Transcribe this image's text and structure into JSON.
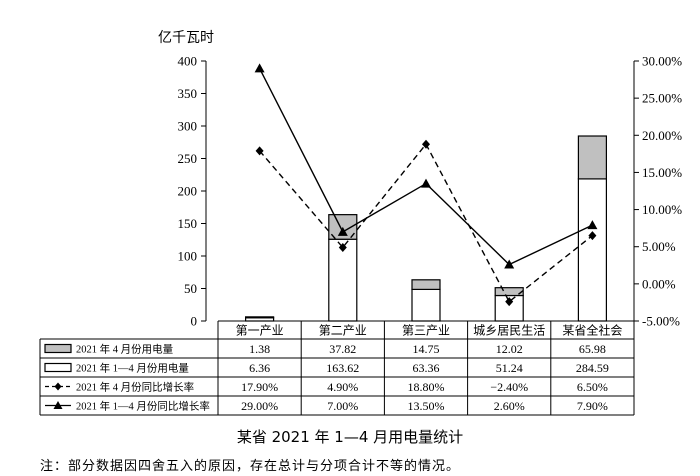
{
  "chart_data": {
    "type": "bar",
    "title": "某省 2021 年 1—4 月用电量统计",
    "unit_left": "亿千瓦时",
    "categories": [
      "第一产业",
      "第二产业",
      "第三产业",
      "城乡居民生活",
      "某省全社会"
    ],
    "left_axis": {
      "min": 0,
      "max": 400,
      "ticks": [
        "400",
        "350",
        "300",
        "250",
        "200",
        "150",
        "100",
        "50",
        "0"
      ]
    },
    "right_axis": {
      "min": -5,
      "max": 30,
      "ticks": [
        "30.00%",
        "25.00%",
        "20.00%",
        "15.00%",
        "10.00%",
        "5.00%",
        "0.00%",
        "-5.00%"
      ]
    },
    "series": [
      {
        "name": "2021 年 4 月份用电量",
        "kind": "bar",
        "color": "#c0c0c0",
        "values": [
          1.38,
          37.82,
          14.75,
          12.02,
          65.98
        ],
        "labels": [
          "1.38",
          "37.82",
          "14.75",
          "12.02",
          "65.98"
        ]
      },
      {
        "name": "2021 年 1—4 月份用电量",
        "kind": "bar",
        "color": "#ffffff",
        "values": [
          6.36,
          163.62,
          63.36,
          51.24,
          284.59
        ],
        "labels": [
          "6.36",
          "163.62",
          "63.36",
          "51.24",
          "284.59"
        ]
      },
      {
        "name": "2021 年 4 月份同比增长率",
        "kind": "line",
        "style": "dashed",
        "marker": "diamond",
        "values": [
          17.9,
          4.9,
          18.8,
          -2.4,
          6.5
        ],
        "labels": [
          "17.90%",
          "4.90%",
          "18.80%",
          "−2.40%",
          "6.50%"
        ]
      },
      {
        "name": "2021 年 1—4 月份同比增长率",
        "kind": "line",
        "style": "solid",
        "marker": "triangle",
        "values": [
          29.0,
          7.0,
          13.5,
          2.6,
          7.9
        ],
        "labels": [
          "29.00%",
          "7.00%",
          "13.50%",
          "2.60%",
          "7.90%"
        ]
      }
    ]
  },
  "footnote": "注：部分数据因四舍五入的原因，存在总计与分项合计不等的情况。"
}
